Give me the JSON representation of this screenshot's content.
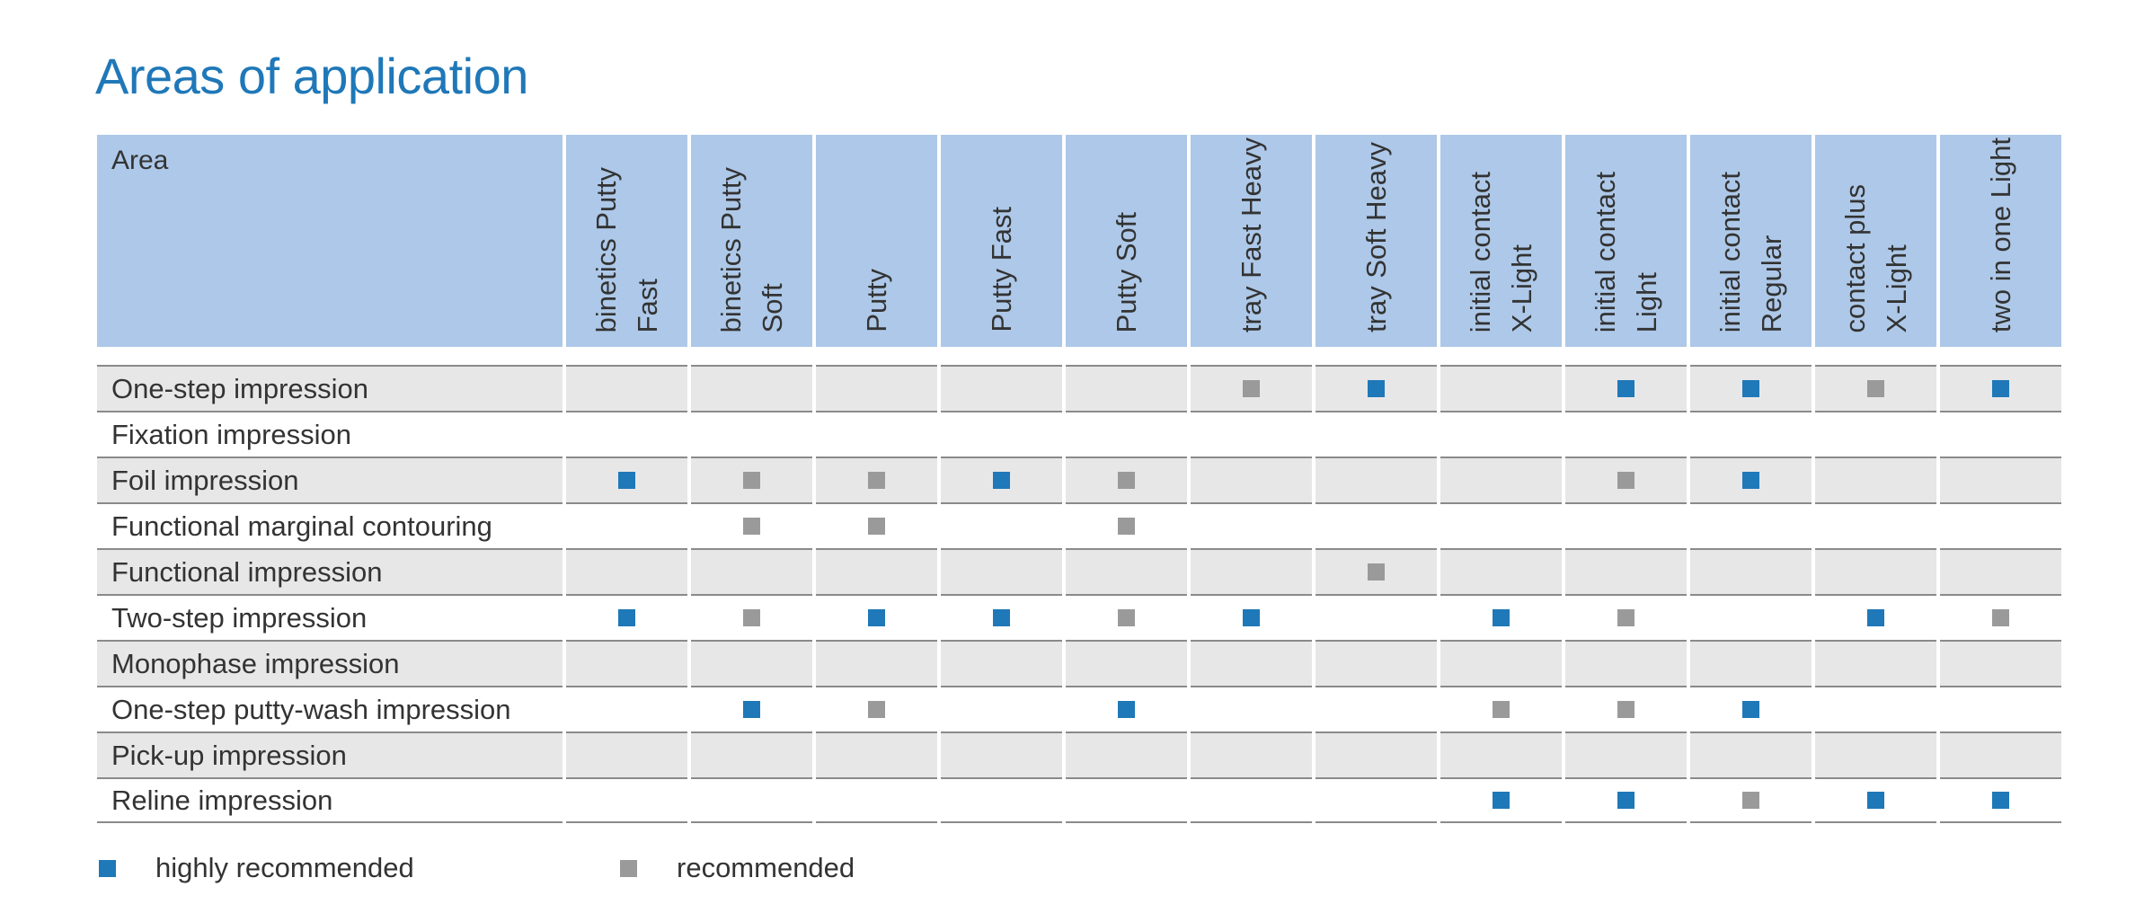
{
  "title": "Areas of application",
  "table": {
    "area_header": "Area",
    "columns": [
      "binetics Putty\nFast",
      "binetics Putty\nSoft",
      "Putty",
      "Putty Fast",
      "Putty Soft",
      "tray Fast Heavy",
      "tray Soft Heavy",
      "initial contact\nX-Light",
      "initial contact\nLight",
      "initial contact\nRegular",
      "contact plus\nX-Light",
      "two in one Light"
    ],
    "rows": [
      {
        "area": "One-step impression",
        "marks": [
          "",
          "",
          "",
          "",
          "",
          "r",
          "h",
          "",
          "h",
          "h",
          "r",
          "h"
        ]
      },
      {
        "area": "Fixation impression",
        "marks": [
          "",
          "",
          "",
          "",
          "",
          "",
          "",
          "",
          "",
          "",
          "",
          ""
        ]
      },
      {
        "area": "Foil impression",
        "marks": [
          "h",
          "r",
          "r",
          "h",
          "r",
          "",
          "",
          "",
          "r",
          "h",
          "",
          ""
        ]
      },
      {
        "area": "Functional marginal contouring",
        "marks": [
          "",
          "r",
          "r",
          "",
          "r",
          "",
          "",
          "",
          "",
          "",
          "",
          ""
        ]
      },
      {
        "area": "Functional impression",
        "marks": [
          "",
          "",
          "",
          "",
          "",
          "",
          "r",
          "",
          "",
          "",
          "",
          ""
        ]
      },
      {
        "area": "Two-step impression",
        "marks": [
          "h",
          "r",
          "h",
          "h",
          "r",
          "h",
          "",
          "h",
          "r",
          "",
          "h",
          "r"
        ]
      },
      {
        "area": "Monophase impression",
        "marks": [
          "",
          "",
          "",
          "",
          "",
          "",
          "",
          "",
          "",
          "",
          "",
          ""
        ]
      },
      {
        "area": "One-step putty-wash impression",
        "marks": [
          "",
          "h",
          "r",
          "",
          "h",
          "",
          "",
          "r",
          "r",
          "h",
          "",
          ""
        ]
      },
      {
        "area": "Pick-up impression",
        "marks": [
          "",
          "",
          "",
          "",
          "",
          "",
          "",
          "",
          "",
          "",
          "",
          ""
        ]
      },
      {
        "area": "Reline impression",
        "marks": [
          "",
          "",
          "",
          "",
          "",
          "",
          "",
          "h",
          "h",
          "r",
          "h",
          "h"
        ]
      }
    ]
  },
  "legend": {
    "highly_recommended": "highly recommended",
    "recommended": "recommended"
  },
  "colors": {
    "title": "#1f78b8",
    "header_bg": "#adc8e8",
    "highly_recommended": "#1f78b8",
    "recommended": "#9a9a9a",
    "row_shade": "#e7e7e8"
  }
}
